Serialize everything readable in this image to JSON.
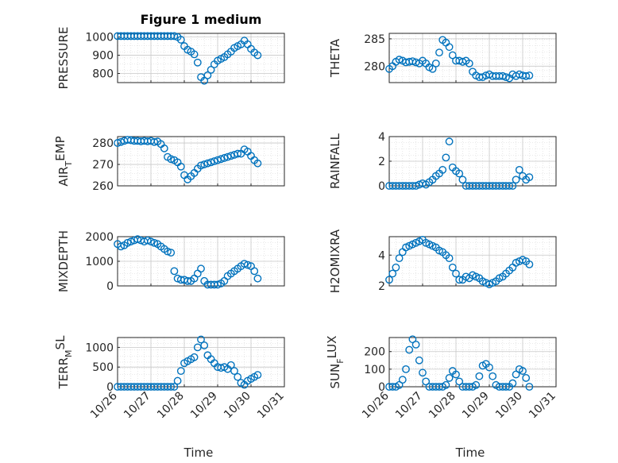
{
  "figure": {
    "title": "Figure 1 medium",
    "xlabel": "Time",
    "xticks": [
      "10/26",
      "10/27",
      "10/28",
      "10/29",
      "10/30",
      "10/31"
    ],
    "grid": true,
    "marker": "open-circle",
    "series_color": "#0072BD"
  },
  "chart_data": [
    {
      "type": "scatter",
      "ylabel": "PRESSURE",
      "ylim": [
        750,
        1020
      ],
      "yticks": [
        800,
        900,
        1000
      ],
      "x": [
        0.0,
        0.1,
        0.2,
        0.3,
        0.4,
        0.5,
        0.6,
        0.7,
        0.8,
        0.9,
        1.0,
        1.1,
        1.2,
        1.3,
        1.4,
        1.5,
        1.6,
        1.7,
        1.8,
        1.9,
        2.0,
        2.1,
        2.2,
        2.3,
        2.4,
        2.5,
        2.6,
        2.7,
        2.8,
        2.9,
        3.0,
        3.1,
        3.2,
        3.3,
        3.4,
        3.5,
        3.6,
        3.7,
        3.8,
        3.9,
        4.0,
        4.1,
        4.2
      ],
      "y": [
        1005,
        1005,
        1005,
        1005,
        1005,
        1005,
        1005,
        1005,
        1005,
        1005,
        1005,
        1005,
        1005,
        1005,
        1005,
        1005,
        1005,
        1005,
        1000,
        985,
        950,
        930,
        920,
        905,
        860,
        780,
        760,
        790,
        820,
        850,
        870,
        880,
        890,
        905,
        920,
        940,
        950,
        960,
        980,
        960,
        935,
        915,
        900
      ]
    },
    {
      "type": "scatter",
      "ylabel": "THETA",
      "ylim": [
        277,
        286
      ],
      "yticks": [
        280,
        285
      ],
      "x": [
        0.0,
        0.1,
        0.2,
        0.3,
        0.4,
        0.5,
        0.6,
        0.7,
        0.8,
        0.9,
        1.0,
        1.1,
        1.2,
        1.3,
        1.4,
        1.5,
        1.6,
        1.7,
        1.8,
        1.9,
        2.0,
        2.1,
        2.2,
        2.3,
        2.4,
        2.5,
        2.6,
        2.7,
        2.8,
        2.9,
        3.0,
        3.1,
        3.2,
        3.3,
        3.4,
        3.5,
        3.6,
        3.7,
        3.8,
        3.9,
        4.0,
        4.1,
        4.2
      ],
      "y": [
        279.5,
        280,
        280.8,
        281.2,
        281,
        280.7,
        280.8,
        280.9,
        280.7,
        280.5,
        281,
        280.5,
        279.8,
        279.5,
        280.5,
        282.5,
        284.8,
        284.3,
        283.5,
        282,
        281,
        281,
        280.8,
        281,
        280.5,
        279,
        278.3,
        278,
        278,
        278.3,
        278.5,
        278.2,
        278.2,
        278.2,
        278.2,
        278,
        277.8,
        278.5,
        278.2,
        278.5,
        278.3,
        278.2,
        278.3
      ]
    },
    {
      "type": "scatter",
      "ylabel": "AIR",
      "ylabel_sub": "T",
      "ylabel_suffix": "EMP",
      "ylim": [
        260,
        283
      ],
      "yticks": [
        260,
        270,
        280
      ],
      "x": [
        0.0,
        0.1,
        0.2,
        0.3,
        0.4,
        0.5,
        0.6,
        0.7,
        0.8,
        0.9,
        1.0,
        1.1,
        1.2,
        1.3,
        1.4,
        1.5,
        1.6,
        1.7,
        1.8,
        1.9,
        2.0,
        2.1,
        2.2,
        2.3,
        2.4,
        2.5,
        2.6,
        2.7,
        2.8,
        2.9,
        3.0,
        3.1,
        3.2,
        3.3,
        3.4,
        3.5,
        3.6,
        3.7,
        3.8,
        3.9,
        4.0,
        4.1,
        4.2
      ],
      "y": [
        280,
        280.5,
        281,
        281.5,
        281.3,
        281,
        281,
        280.8,
        281,
        280.8,
        281,
        280.5,
        280.7,
        279.5,
        277.5,
        273.5,
        272.5,
        272,
        271,
        269,
        265,
        263,
        264.5,
        266,
        268,
        269.5,
        270,
        270.5,
        271,
        271.5,
        272,
        272.5,
        273,
        273.5,
        274,
        274.5,
        275,
        275,
        277,
        276,
        274,
        272,
        270.5
      ]
    },
    {
      "type": "scatter",
      "ylabel": "RAINFALL",
      "ylim": [
        0,
        4
      ],
      "yticks": [
        0,
        2,
        4
      ],
      "x": [
        0.0,
        0.1,
        0.2,
        0.3,
        0.4,
        0.5,
        0.6,
        0.7,
        0.8,
        0.9,
        1.0,
        1.1,
        1.2,
        1.3,
        1.4,
        1.5,
        1.6,
        1.7,
        1.8,
        1.9,
        2.0,
        2.1,
        2.2,
        2.3,
        2.4,
        2.5,
        2.6,
        2.7,
        2.8,
        2.9,
        3.0,
        3.1,
        3.2,
        3.3,
        3.4,
        3.5,
        3.6,
        3.7,
        3.8,
        3.9,
        4.0,
        4.1,
        4.2
      ],
      "y": [
        0,
        0,
        0,
        0,
        0,
        0,
        0,
        0,
        0,
        0.1,
        0.2,
        0.1,
        0.3,
        0.5,
        0.8,
        1.0,
        1.3,
        2.3,
        3.6,
        1.5,
        1.2,
        1.0,
        0.5,
        0,
        0,
        0,
        0,
        0,
        0,
        0,
        0,
        0,
        0,
        0,
        0,
        0,
        0,
        0,
        0.5,
        1.3,
        0.8,
        0.5,
        0.7
      ]
    },
    {
      "type": "scatter",
      "ylabel": "MIXDEPTH",
      "ylim": [
        0,
        2000
      ],
      "yticks": [
        0,
        1000,
        2000
      ],
      "x": [
        0.0,
        0.1,
        0.2,
        0.3,
        0.4,
        0.5,
        0.6,
        0.7,
        0.8,
        0.9,
        1.0,
        1.1,
        1.2,
        1.3,
        1.4,
        1.5,
        1.6,
        1.7,
        1.8,
        1.9,
        2.0,
        2.1,
        2.2,
        2.3,
        2.4,
        2.5,
        2.6,
        2.7,
        2.8,
        2.9,
        3.0,
        3.1,
        3.2,
        3.3,
        3.4,
        3.5,
        3.6,
        3.7,
        3.8,
        3.9,
        4.0,
        4.1,
        4.2
      ],
      "y": [
        1700,
        1600,
        1650,
        1750,
        1800,
        1850,
        1900,
        1850,
        1800,
        1850,
        1800,
        1750,
        1700,
        1600,
        1500,
        1400,
        1350,
        600,
        300,
        250,
        250,
        200,
        200,
        300,
        500,
        700,
        200,
        50,
        50,
        50,
        50,
        100,
        200,
        400,
        500,
        600,
        700,
        800,
        900,
        850,
        800,
        600,
        300
      ]
    },
    {
      "type": "scatter",
      "ylabel": "H2OMIXRA",
      "ylim": [
        2,
        5.2
      ],
      "yticks": [
        2,
        4
      ],
      "x": [
        0.0,
        0.1,
        0.2,
        0.3,
        0.4,
        0.5,
        0.6,
        0.7,
        0.8,
        0.9,
        1.0,
        1.1,
        1.2,
        1.3,
        1.4,
        1.5,
        1.6,
        1.7,
        1.8,
        1.9,
        2.0,
        2.1,
        2.2,
        2.3,
        2.4,
        2.5,
        2.6,
        2.7,
        2.8,
        2.9,
        3.0,
        3.1,
        3.2,
        3.3,
        3.4,
        3.5,
        3.6,
        3.7,
        3.8,
        3.9,
        4.0,
        4.1,
        4.2
      ],
      "y": [
        2.4,
        2.8,
        3.2,
        3.8,
        4.2,
        4.5,
        4.6,
        4.7,
        4.8,
        4.9,
        5.0,
        4.8,
        4.7,
        4.6,
        4.5,
        4.3,
        4.2,
        4.0,
        3.8,
        3.2,
        2.8,
        2.4,
        2.4,
        2.6,
        2.5,
        2.7,
        2.6,
        2.5,
        2.3,
        2.2,
        2.1,
        2.2,
        2.3,
        2.5,
        2.6,
        2.8,
        3.0,
        3.2,
        3.5,
        3.6,
        3.7,
        3.6,
        3.4
      ]
    },
    {
      "type": "scatter",
      "ylabel": "TERR",
      "ylabel_sub": "M",
      "ylabel_suffix": "SL",
      "ylim": [
        0,
        1250
      ],
      "yticks": [
        0,
        500,
        1000
      ],
      "x": [
        0.0,
        0.1,
        0.2,
        0.3,
        0.4,
        0.5,
        0.6,
        0.7,
        0.8,
        0.9,
        1.0,
        1.1,
        1.2,
        1.3,
        1.4,
        1.5,
        1.6,
        1.7,
        1.8,
        1.9,
        2.0,
        2.1,
        2.2,
        2.3,
        2.4,
        2.5,
        2.6,
        2.7,
        2.8,
        2.9,
        3.0,
        3.1,
        3.2,
        3.3,
        3.4,
        3.5,
        3.6,
        3.7,
        3.8,
        3.9,
        4.0,
        4.1,
        4.2
      ],
      "y": [
        0,
        0,
        0,
        0,
        0,
        0,
        0,
        0,
        0,
        0,
        0,
        0,
        0,
        0,
        0,
        0,
        0,
        0,
        150,
        400,
        600,
        650,
        700,
        750,
        1000,
        1200,
        1050,
        800,
        700,
        600,
        500,
        480,
        500,
        450,
        550,
        400,
        250,
        100,
        50,
        150,
        200,
        250,
        300
      ]
    },
    {
      "type": "scatter",
      "ylabel": "SUN",
      "ylabel_sub": "F",
      "ylabel_suffix": "LUX",
      "ylim": [
        0,
        280
      ],
      "yticks": [
        0,
        100,
        200
      ],
      "x": [
        0.0,
        0.1,
        0.2,
        0.3,
        0.4,
        0.5,
        0.6,
        0.7,
        0.8,
        0.9,
        1.0,
        1.1,
        1.2,
        1.3,
        1.4,
        1.5,
        1.6,
        1.7,
        1.8,
        1.9,
        2.0,
        2.1,
        2.2,
        2.3,
        2.4,
        2.5,
        2.6,
        2.7,
        2.8,
        2.9,
        3.0,
        3.1,
        3.2,
        3.3,
        3.4,
        3.5,
        3.6,
        3.7,
        3.8,
        3.9,
        4.0,
        4.1,
        4.2
      ],
      "y": [
        0,
        0,
        0,
        10,
        40,
        100,
        210,
        270,
        240,
        150,
        80,
        30,
        0,
        0,
        0,
        0,
        0,
        10,
        50,
        90,
        70,
        30,
        0,
        0,
        0,
        0,
        10,
        60,
        120,
        130,
        110,
        60,
        10,
        0,
        0,
        0,
        0,
        20,
        70,
        100,
        90,
        50,
        0
      ]
    }
  ]
}
